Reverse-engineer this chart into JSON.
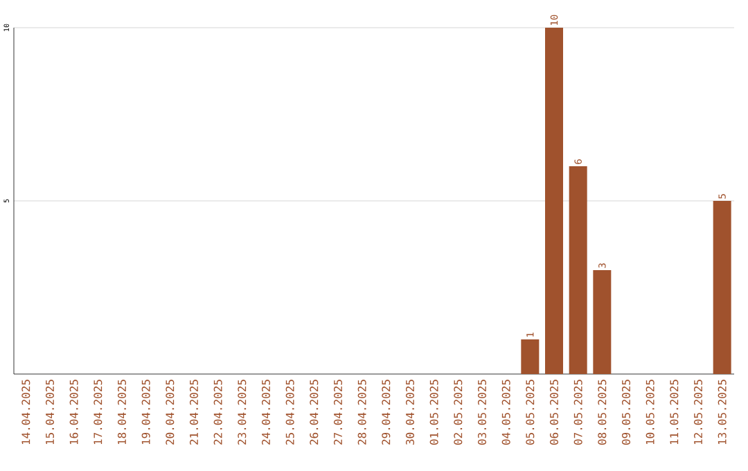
{
  "chart_data": {
    "type": "bar",
    "categories": [
      "14.04.2025",
      "15.04.2025",
      "16.04.2025",
      "17.04.2025",
      "18.04.2025",
      "19.04.2025",
      "20.04.2025",
      "21.04.2025",
      "22.04.2025",
      "23.04.2025",
      "24.04.2025",
      "25.04.2025",
      "26.04.2025",
      "27.04.2025",
      "28.04.2025",
      "29.04.2025",
      "30.04.2025",
      "01.05.2025",
      "02.05.2025",
      "03.05.2025",
      "04.05.2025",
      "05.05.2025",
      "06.05.2025",
      "07.05.2025",
      "08.05.2025",
      "09.05.2025",
      "10.05.2025",
      "11.05.2025",
      "12.05.2025",
      "13.05.2025"
    ],
    "values": [
      0,
      0,
      0,
      0,
      0,
      0,
      0,
      0,
      0,
      0,
      0,
      0,
      0,
      0,
      0,
      0,
      0,
      0,
      0,
      0,
      0,
      1,
      10,
      6,
      3,
      0,
      0,
      0,
      0,
      5
    ],
    "value_labels": [
      null,
      null,
      null,
      null,
      null,
      null,
      null,
      null,
      null,
      null,
      null,
      null,
      null,
      null,
      null,
      null,
      null,
      null,
      null,
      null,
      null,
      "1",
      "10",
      "6",
      "3",
      null,
      null,
      null,
      null,
      "5"
    ],
    "color": "#a0522d",
    "ylim": [
      0,
      10
    ],
    "yticks": [
      5,
      10
    ],
    "grid": "y"
  }
}
